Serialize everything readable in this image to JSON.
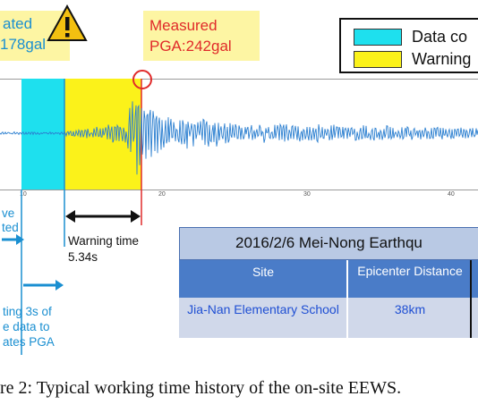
{
  "estimated_callout": {
    "line1": "ated",
    "line2": "178gal"
  },
  "measured_callout": {
    "line1": "Measured",
    "line2": "PGA:242gal"
  },
  "legend": [
    {
      "label": "Data co",
      "color": "#1ee0ee"
    },
    {
      "label": "Warning",
      "color": "#fbf21a"
    }
  ],
  "x_ticks": [
    "10",
    "20",
    "30",
    "40"
  ],
  "annotations": {
    "p_wave_line1": "ve",
    "p_wave_line2": "ted",
    "collect_line1": "ting 3s of",
    "collect_line2": "e data to",
    "collect_line3": "ates PGA",
    "warning_time_label": "Warning time",
    "warning_time_value": "5.34s"
  },
  "info_table": {
    "title": "2016/2/6 Mei-Nong Earthqu",
    "headers": [
      "Site",
      "Epicenter Distance"
    ],
    "rows": [
      [
        "Jia-Nan Elementary School",
        "38km"
      ]
    ]
  },
  "caption": "re 2: Typical working time history of the on-site EEWS."
}
